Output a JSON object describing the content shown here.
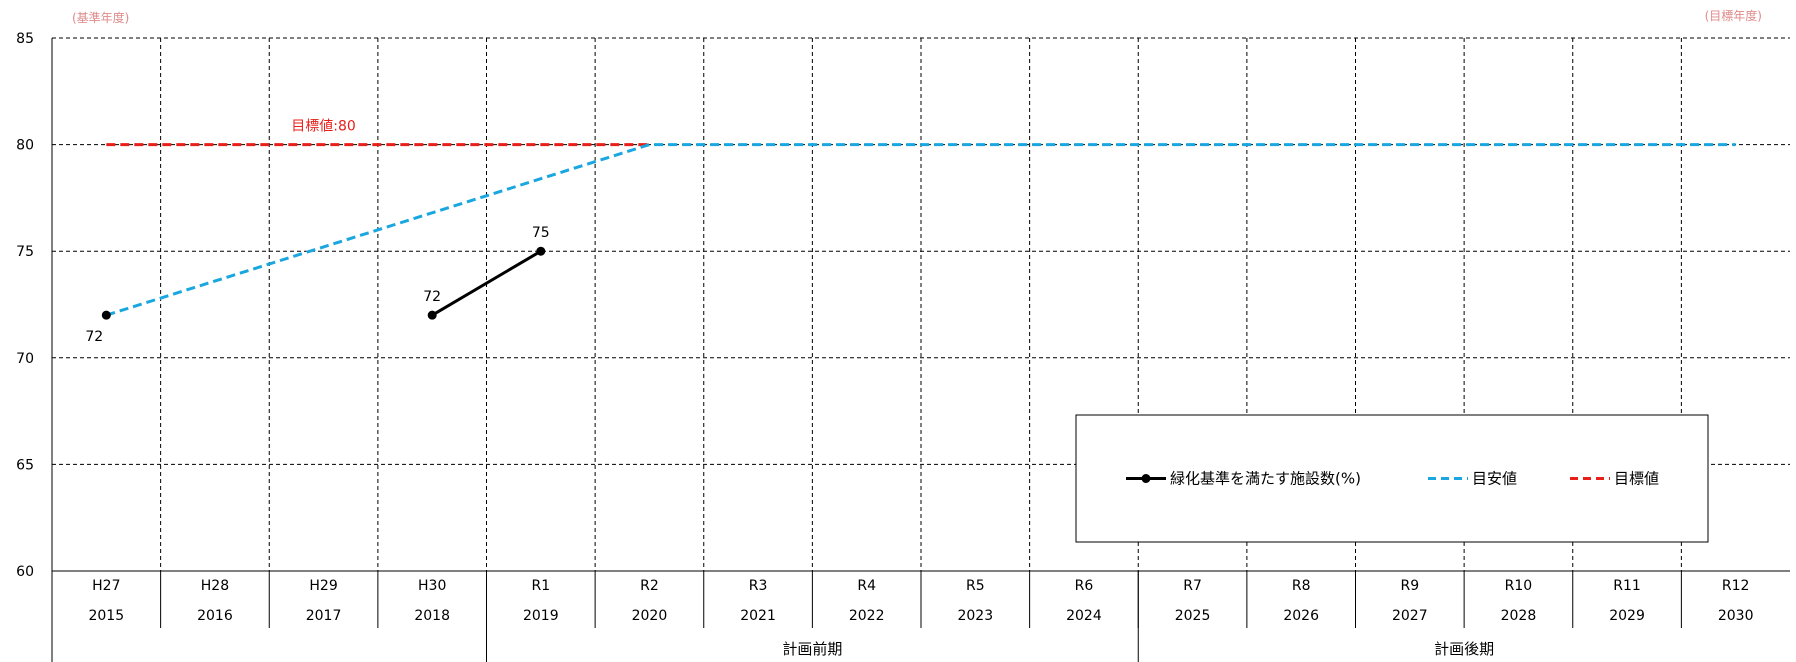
{
  "chart_data": {
    "type": "line",
    "ylim": [
      60,
      85
    ],
    "yticks": [
      60,
      65,
      70,
      75,
      80,
      85
    ],
    "ytick_labels": [
      "60",
      "65",
      "70",
      "75",
      "80",
      "85"
    ],
    "grid": true,
    "categories_era": [
      "H27",
      "H28",
      "H29",
      "H30",
      "R1",
      "R2",
      "R3",
      "R4",
      "R5",
      "R6",
      "R7",
      "R8",
      "R9",
      "R10",
      "R11",
      "R12"
    ],
    "categories_year": [
      "2015",
      "2016",
      "2017",
      "2018",
      "2019",
      "2020",
      "2021",
      "2022",
      "2023",
      "2024",
      "2025",
      "2026",
      "2027",
      "2028",
      "2029",
      "2030"
    ],
    "periods": [
      {
        "label": "",
        "from": 0,
        "to": 3
      },
      {
        "label": "計画前期",
        "from": 4,
        "to": 9
      },
      {
        "label": "計画後期",
        "from": 10,
        "to": 15
      }
    ],
    "corner_labels": {
      "left": "(基準年度)",
      "right": "(目標年度)"
    },
    "series": [
      {
        "name": "緑化基準を満たす施設数(%)",
        "style": "solid",
        "markers": true,
        "color": "#000000",
        "points": [
          {
            "x": 3,
            "y": 72
          },
          {
            "x": 4,
            "y": 75
          }
        ],
        "data_labels": [
          {
            "x": 3,
            "y": 72,
            "text": "72",
            "pos": "above"
          },
          {
            "x": 4,
            "y": 75,
            "text": "75",
            "pos": "above"
          }
        ]
      },
      {
        "name": "目安値",
        "style": "dashed",
        "markers": false,
        "color": "#1aa7e0",
        "points": [
          {
            "x": 0,
            "y": 72
          },
          {
            "x": 5,
            "y": 80
          },
          {
            "x": 15,
            "y": 80
          }
        ],
        "start_marker": {
          "x": 0,
          "y": 72
        },
        "data_labels": [
          {
            "x": 0,
            "y": 72,
            "text": "72",
            "pos": "below"
          }
        ]
      },
      {
        "name": "目標値",
        "style": "dashed",
        "markers": false,
        "color": "#e8201a",
        "points": [
          {
            "x": 0,
            "y": 80
          },
          {
            "x": 5,
            "y": 80
          }
        ],
        "data_labels": [
          {
            "x": 2,
            "y": 80,
            "text": "目標値:80",
            "pos": "above"
          }
        ]
      }
    ],
    "legend": {
      "placement": "lower-right",
      "items": [
        "緑化基準を満たす施設数(%)",
        "目安値",
        "目標値"
      ]
    }
  }
}
